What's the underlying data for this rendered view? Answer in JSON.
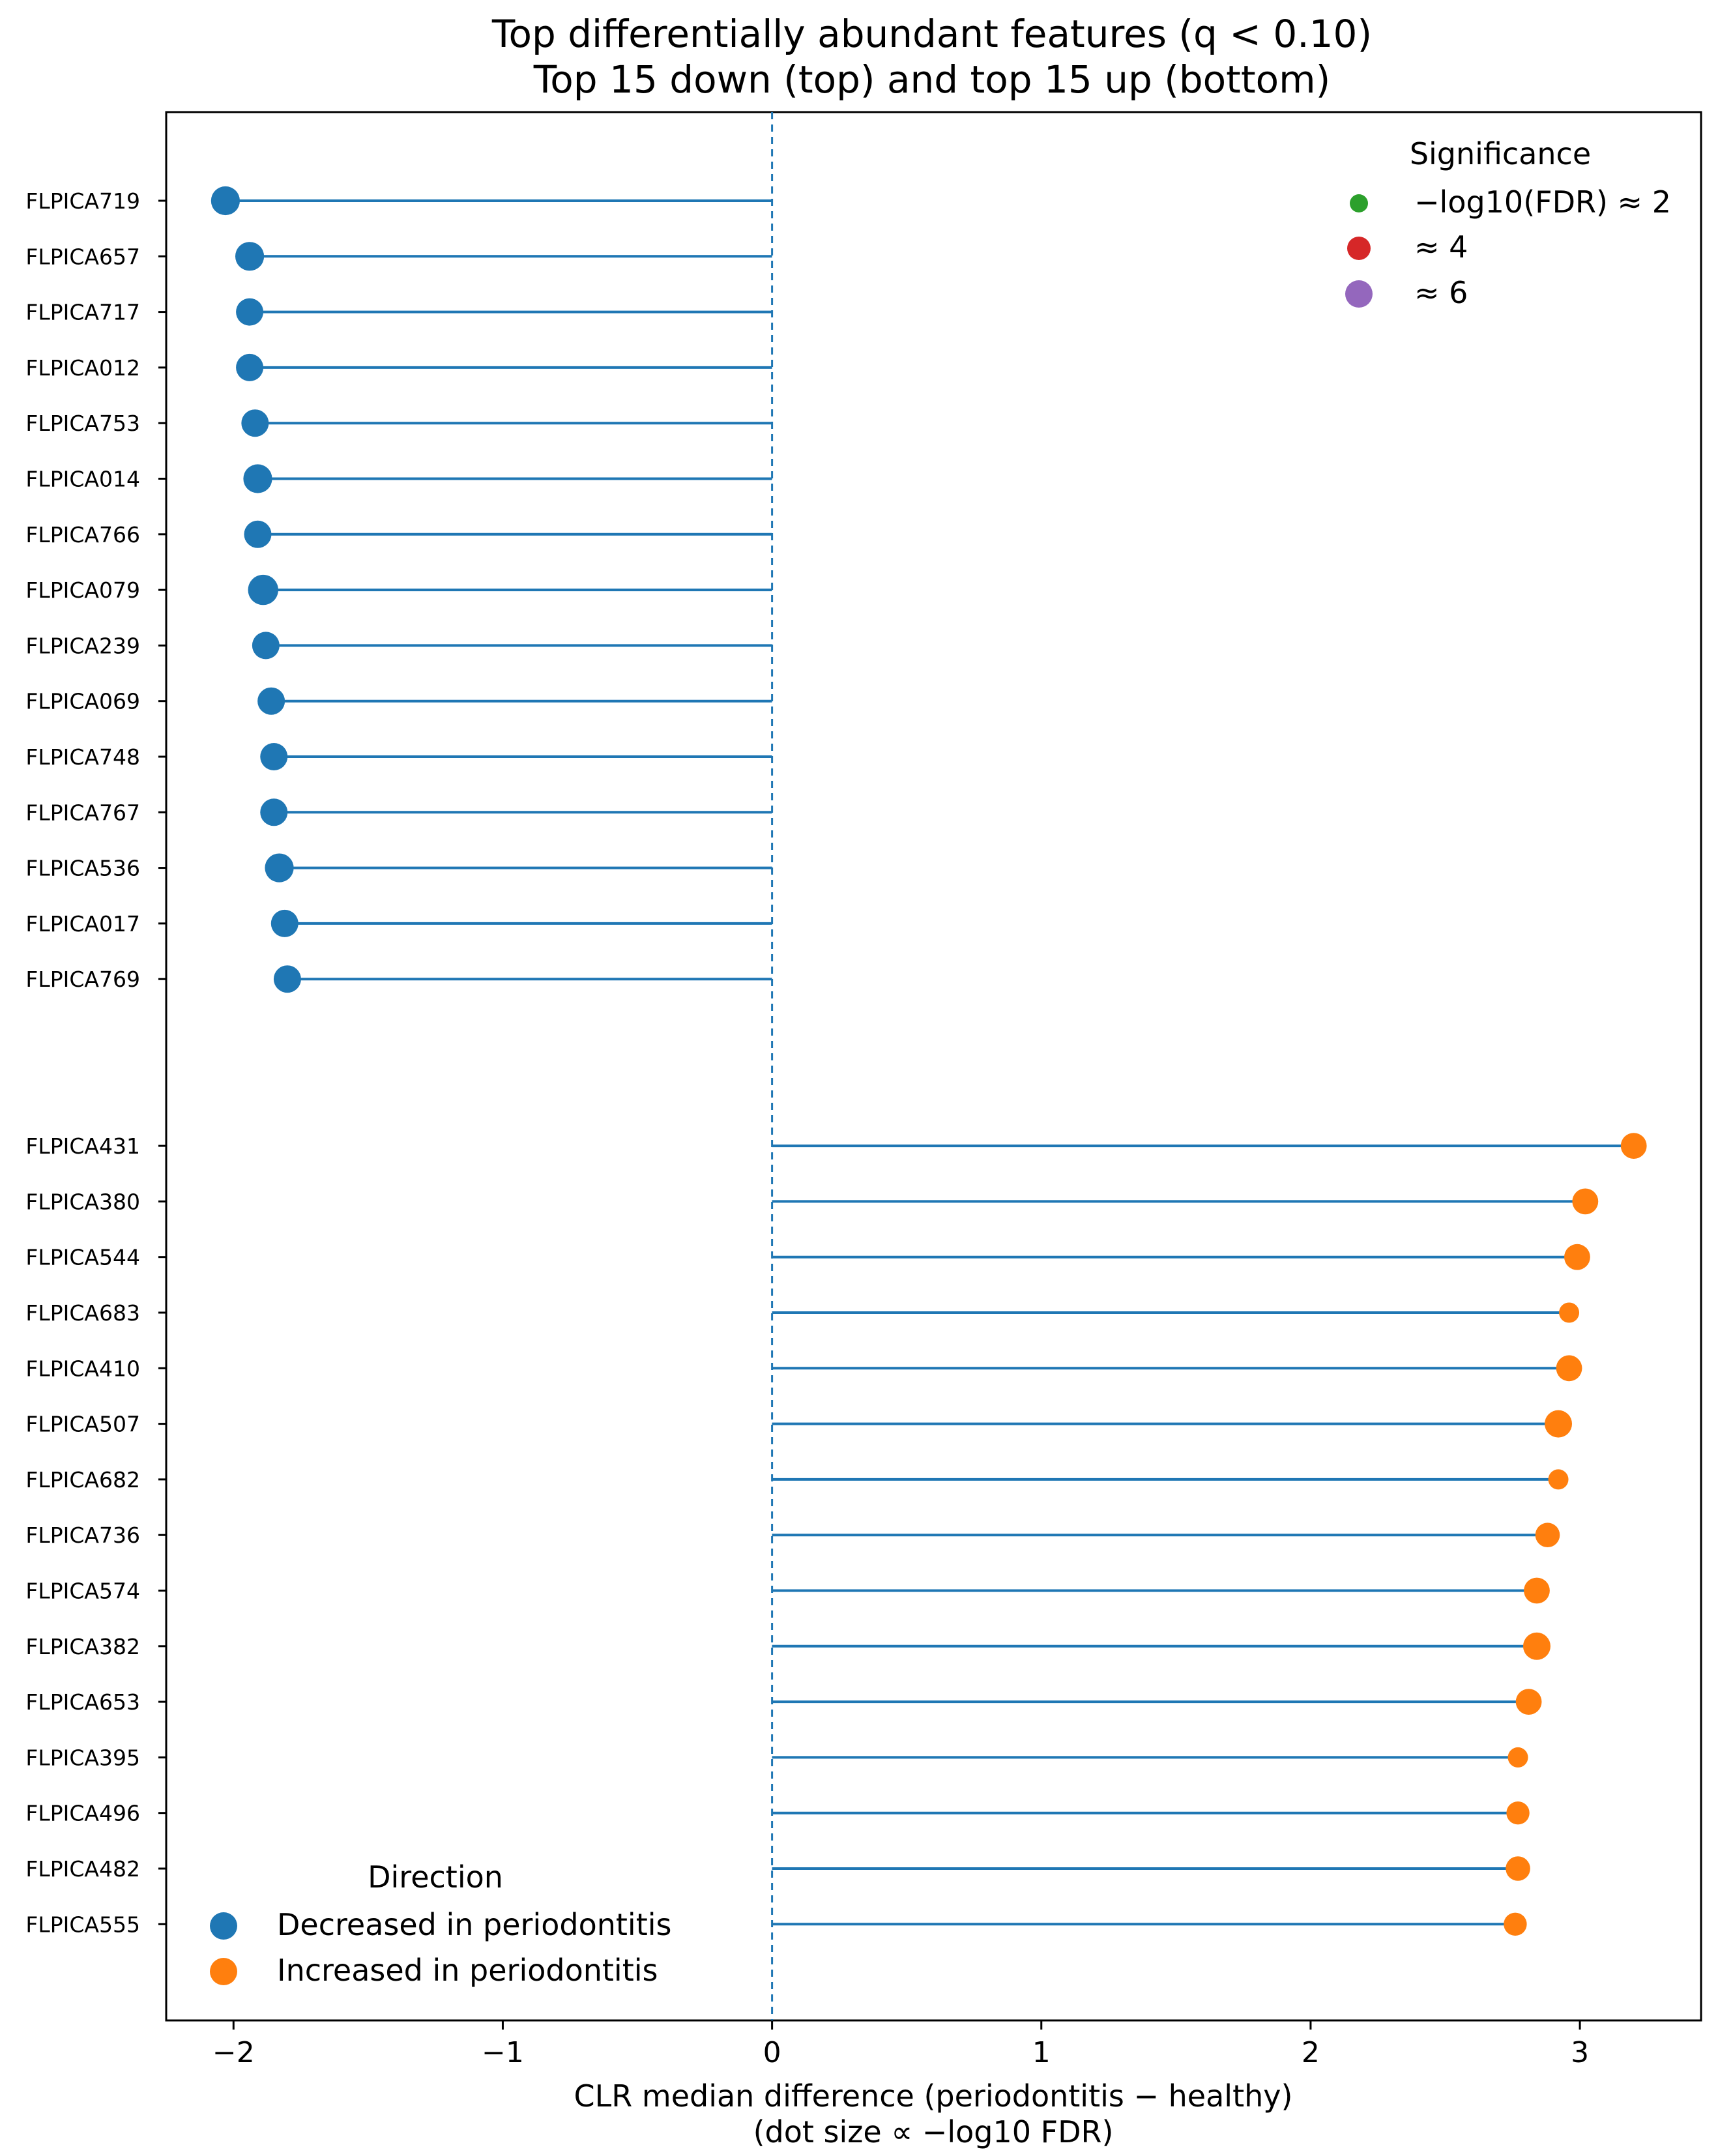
{
  "chart_data": {
    "type": "lollipop",
    "title_lines": [
      "Top differentially abundant features (q < 0.10)",
      "Top 15 down (top) and top 15 up (bottom)"
    ],
    "xlabel_lines": [
      "CLR median difference (periodontitis − healthy)",
      "(dot size ∝ −log10 FDR)"
    ],
    "xlim": [
      -2.25,
      3.45
    ],
    "xticks": [
      -2,
      -1,
      0,
      1,
      2,
      3
    ],
    "xtick_labels": [
      "−2",
      "−1",
      "0",
      "1",
      "2",
      "3"
    ],
    "reference_line_x": 0,
    "series": [
      {
        "name": "Decreased in periodontitis",
        "color": "#1f77b4",
        "features": [
          "FLPICA719",
          "FLPICA657",
          "FLPICA717",
          "FLPICA012",
          "FLPICA753",
          "FLPICA014",
          "FLPICA766",
          "FLPICA079",
          "FLPICA239",
          "FLPICA069",
          "FLPICA748",
          "FLPICA767",
          "FLPICA536",
          "FLPICA017",
          "FLPICA769"
        ],
        "values": [
          -2.03,
          -1.94,
          -1.94,
          -1.94,
          -1.92,
          -1.91,
          -1.91,
          -1.89,
          -1.88,
          -1.86,
          -1.85,
          -1.85,
          -1.83,
          -1.81,
          -1.8
        ],
        "neg_log10_fdr": [
          5.5,
          5.5,
          5.0,
          5.0,
          5.0,
          5.5,
          5.0,
          6.0,
          5.0,
          5.0,
          5.0,
          5.0,
          5.5,
          5.0,
          5.0
        ]
      },
      {
        "name": "Increased in periodontitis",
        "color": "#ff7f0e",
        "features": [
          "FLPICA431",
          "FLPICA380",
          "FLPICA544",
          "FLPICA683",
          "FLPICA410",
          "FLPICA507",
          "FLPICA682",
          "FLPICA736",
          "FLPICA574",
          "FLPICA382",
          "FLPICA653",
          "FLPICA395",
          "FLPICA496",
          "FLPICA482",
          "FLPICA555"
        ],
        "values": [
          3.2,
          3.02,
          2.99,
          2.96,
          2.96,
          2.92,
          2.92,
          2.88,
          2.84,
          2.84,
          2.81,
          2.77,
          2.77,
          2.77,
          2.76
        ],
        "neg_log10_fdr": [
          4.5,
          4.5,
          4.5,
          2.5,
          4.5,
          5.0,
          2.5,
          4.0,
          4.5,
          5.0,
          4.5,
          2.5,
          3.5,
          4.0,
          3.5
        ]
      }
    ],
    "significance_legend": {
      "title": "Significance",
      "entries": [
        {
          "label": "−log10(FDR) ≈ 2",
          "level": 2,
          "color": "#2ca02c"
        },
        {
          "label": "≈ 4",
          "level": 4,
          "color": "#d62728"
        },
        {
          "label": "≈ 6",
          "level": 6,
          "color": "#9467bd"
        }
      ],
      "position": "top-right"
    },
    "direction_legend": {
      "title": "Direction",
      "entries": [
        {
          "label": "Decreased in periodontitis",
          "color": "#1f77b4"
        },
        {
          "label": "Increased in periodontitis",
          "color": "#ff7f0e"
        }
      ],
      "position": "bottom-left"
    }
  }
}
